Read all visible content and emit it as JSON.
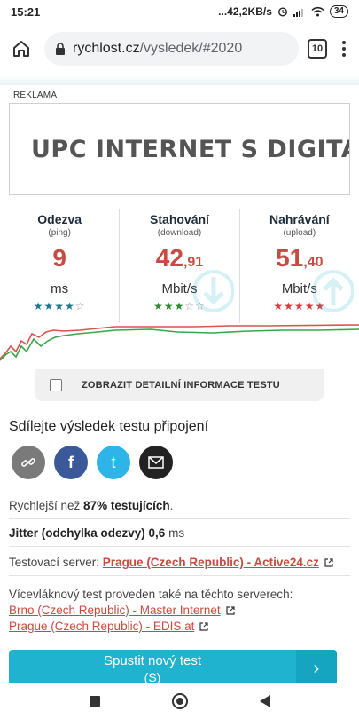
{
  "statusbar": {
    "time": "15:21",
    "net_speed": "...42,2KB/s",
    "battery": "34"
  },
  "browser": {
    "url_domain": "rychlost.cz",
    "url_path": "/vysledek/#2020",
    "tab_count": "10"
  },
  "ad": {
    "label": "REKLAMA",
    "text": "UPC INTERNET S DIGITÁLNÍ"
  },
  "results": [
    {
      "title": "Odezva",
      "sub": "(ping)",
      "value_int": "9",
      "value_dec": "",
      "unit": "ms",
      "stars": 4,
      "star_color": "#1e7a8a"
    },
    {
      "title": "Stahování",
      "sub": "(download)",
      "value_int": "42",
      "value_dec": ",91",
      "unit": "Mbit/s",
      "stars": 3,
      "star_color": "#2e8b2e"
    },
    {
      "title": "Nahrávání",
      "sub": "(upload)",
      "value_int": "51",
      "value_dec": ",40",
      "unit": "Mbit/s",
      "stars": 5,
      "star_color": "#d93a3a"
    }
  ],
  "detail_toggle": {
    "label": "ZOBRAZIT DETAILNÍ INFORMACE TESTU"
  },
  "share": {
    "title": "Sdílejte výsledek testu připojení"
  },
  "info": {
    "faster_prefix": "Rychlejší než ",
    "faster_value": "87% testujících",
    "faster_suffix": ".",
    "jitter_label": "Jitter (odchylka odezvy)",
    "jitter_value": " 0,6",
    "jitter_unit": " ms",
    "server_prefix": "Testovací server: ",
    "server_link": "Prague (Czech Republic) - Active24.cz",
    "multi_text": "Vícevláknový test proveden také na těchto serverech:",
    "multi_links": [
      "Brno (Czech Republic) - Master Internet",
      "Prague (Czech Republic) - EDIS.at"
    ]
  },
  "start_button": {
    "label": "Spustit nový test",
    "sub": "(S)"
  },
  "colors": {
    "accent": "#1fb3cf",
    "value_red": "#c74a45",
    "download_line": "#3aa648",
    "upload_line": "#d9534f"
  }
}
